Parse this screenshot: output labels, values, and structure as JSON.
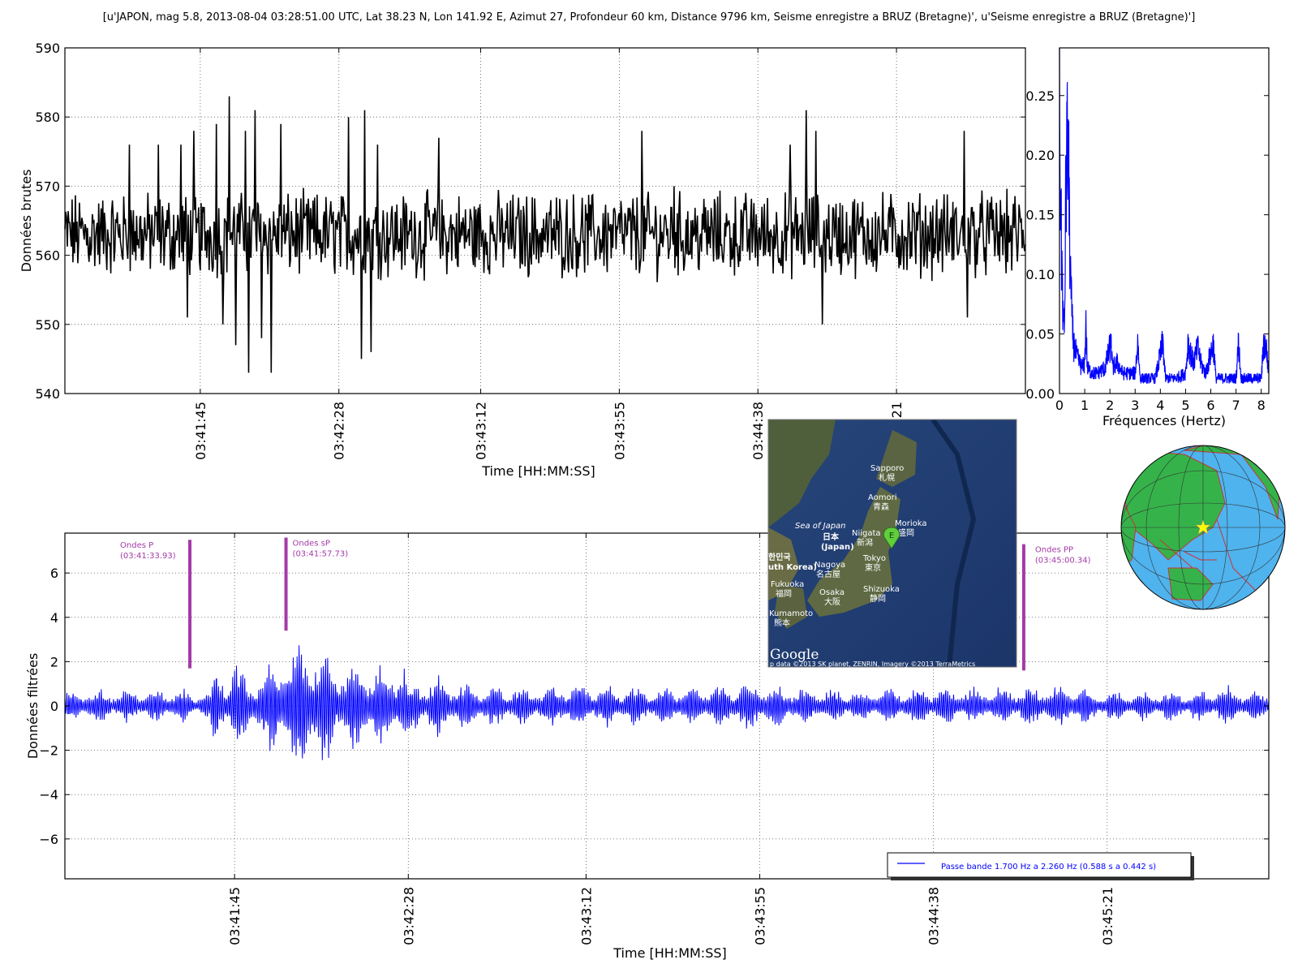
{
  "title": "[u'JAPON, mag 5.8, 2013-08-04 03:28:51.00 UTC, Lat 38.23 N, Lon 141.92 E, Azimut 27, Profondeur 60 km, Distance 9796 km, Seisme enregistre a BRUZ (Bretagne)', u'Seisme enregistre a BRUZ (Bretagne)']",
  "colors": {
    "raw": "#000000",
    "spectrum": "#0000ff",
    "filtered": "#0000ff",
    "annotation": "#a43aa8",
    "grid": "#555555"
  },
  "chart_data": [
    {
      "id": "raw",
      "type": "line",
      "xlabel": "Time [HH:MM:SS]",
      "ylabel": "Données brutes",
      "x_tick_labels": [
        "03:41:45",
        "03:42:28",
        "03:43:12",
        "03:43:55",
        "03:44:38",
        "03:45:21"
      ],
      "x_tick_seconds": [
        105,
        148,
        192,
        235,
        278,
        321
      ],
      "xlim_seconds": [
        63,
        361
      ],
      "ylim": [
        540,
        590
      ],
      "yticks": [
        540,
        550,
        560,
        570,
        580,
        590
      ],
      "grid": true,
      "baseline": 563,
      "noise_amplitude": 5,
      "series_color": "#000000",
      "peaks": [
        {
          "t": 83,
          "v": 576
        },
        {
          "t": 92,
          "v": 576
        },
        {
          "t": 99,
          "v": 576
        },
        {
          "t": 101,
          "v": 551
        },
        {
          "t": 103,
          "v": 578
        },
        {
          "t": 110,
          "v": 579
        },
        {
          "t": 112,
          "v": 550
        },
        {
          "t": 114,
          "v": 583
        },
        {
          "t": 116,
          "v": 547
        },
        {
          "t": 119,
          "v": 578
        },
        {
          "t": 120,
          "v": 543
        },
        {
          "t": 122,
          "v": 581
        },
        {
          "t": 124,
          "v": 548
        },
        {
          "t": 127,
          "v": 543
        },
        {
          "t": 130,
          "v": 579
        },
        {
          "t": 151,
          "v": 580
        },
        {
          "t": 155,
          "v": 545
        },
        {
          "t": 156,
          "v": 581
        },
        {
          "t": 158,
          "v": 546
        },
        {
          "t": 160,
          "v": 576
        },
        {
          "t": 179,
          "v": 577
        },
        {
          "t": 242,
          "v": 578
        },
        {
          "t": 252,
          "v": 570
        },
        {
          "t": 288,
          "v": 576
        },
        {
          "t": 293,
          "v": 581
        },
        {
          "t": 298,
          "v": 550
        },
        {
          "t": 296,
          "v": 578
        },
        {
          "t": 342,
          "v": 578
        },
        {
          "t": 343,
          "v": 551
        }
      ]
    },
    {
      "id": "spectrum",
      "type": "line",
      "xlabel": "Fréquences (Hertz)",
      "ylabel": "",
      "xlim": [
        0,
        8.3
      ],
      "xticks": [
        0,
        1,
        2,
        3,
        4,
        5,
        6,
        7,
        8
      ],
      "ylim": [
        0,
        0.29
      ],
      "yticks": [
        0.0,
        0.05,
        0.1,
        0.15,
        0.2,
        0.25
      ],
      "ytick_labels": [
        "0.00",
        "0.05",
        "0.10",
        "0.15",
        "0.20",
        "0.25"
      ],
      "grid": false,
      "series_color": "#0000ff",
      "points": [
        [
          0.0,
          0.29
        ],
        [
          0.05,
          0.17
        ],
        [
          0.1,
          0.12
        ],
        [
          0.15,
          0.07
        ],
        [
          0.2,
          0.06
        ],
        [
          0.25,
          0.2
        ],
        [
          0.3,
          0.24
        ],
        [
          0.35,
          0.23
        ],
        [
          0.4,
          0.16
        ],
        [
          0.45,
          0.1
        ],
        [
          0.5,
          0.07
        ],
        [
          0.55,
          0.05
        ],
        [
          0.6,
          0.045
        ],
        [
          0.7,
          0.035
        ],
        [
          0.8,
          0.03
        ],
        [
          0.9,
          0.025
        ],
        [
          1.0,
          0.03
        ],
        [
          1.05,
          0.07
        ],
        [
          1.1,
          0.025
        ],
        [
          1.3,
          0.02
        ],
        [
          1.5,
          0.02
        ],
        [
          1.8,
          0.025
        ],
        [
          2.05,
          0.05
        ],
        [
          2.1,
          0.025
        ],
        [
          2.3,
          0.03
        ],
        [
          2.5,
          0.02
        ],
        [
          3.0,
          0.02
        ],
        [
          3.1,
          0.05
        ],
        [
          3.2,
          0.015
        ],
        [
          3.8,
          0.015
        ],
        [
          4.1,
          0.05
        ],
        [
          4.2,
          0.015
        ],
        [
          4.6,
          0.015
        ],
        [
          5.0,
          0.02
        ],
        [
          5.1,
          0.05
        ],
        [
          5.3,
          0.03
        ],
        [
          5.5,
          0.045
        ],
        [
          5.6,
          0.03
        ],
        [
          5.8,
          0.02
        ],
        [
          6.1,
          0.05
        ],
        [
          6.2,
          0.015
        ],
        [
          7.0,
          0.015
        ],
        [
          7.1,
          0.05
        ],
        [
          7.2,
          0.015
        ],
        [
          8.0,
          0.015
        ],
        [
          8.1,
          0.05
        ],
        [
          8.2,
          0.045
        ],
        [
          8.3,
          0.02
        ]
      ]
    },
    {
      "id": "filtered",
      "type": "line",
      "xlabel": "Time [HH:MM:SS]",
      "ylabel": "Données filtrées",
      "x_tick_labels": [
        "03:41:45",
        "03:42:28",
        "03:43:12",
        "03:43:55",
        "03:44:38",
        "03:45:21"
      ],
      "x_tick_seconds": [
        105,
        148,
        192,
        235,
        278,
        321
      ],
      "xlim_seconds": [
        63,
        361
      ],
      "ylim": [
        -7.8,
        7.8
      ],
      "yticks": [
        -6,
        -4,
        -2,
        0,
        2,
        4,
        6
      ],
      "ytick_labels": [
        "−6",
        "−4",
        "−2",
        "0",
        "2",
        "4",
        "6"
      ],
      "grid": true,
      "series_color": "#0000ff",
      "legend": "Passe bande 1.700 Hz a 2.260 Hz (0.588 s a 0.442 s)",
      "legend_location": "lower-right",
      "envelope": [
        [
          63,
          0.8
        ],
        [
          93,
          0.8
        ],
        [
          94,
          0.6
        ],
        [
          99,
          0.8
        ],
        [
          100,
          2.0
        ],
        [
          104,
          1.8
        ],
        [
          105,
          2.4
        ],
        [
          108,
          1.4
        ],
        [
          113,
          1.8
        ],
        [
          115,
          2.5
        ],
        [
          118,
          3.0
        ],
        [
          120,
          3.4
        ],
        [
          122,
          3.6
        ],
        [
          123,
          3.8
        ],
        [
          125,
          3.2
        ],
        [
          128,
          2.8
        ],
        [
          132,
          2.0
        ],
        [
          136,
          2.4
        ],
        [
          140,
          2.0
        ],
        [
          143,
          1.8
        ],
        [
          147,
          2.5
        ],
        [
          148,
          1.3
        ],
        [
          156,
          1.5
        ],
        [
          160,
          1.2
        ],
        [
          170,
          1.0
        ],
        [
          180,
          1.0
        ],
        [
          190,
          1.2
        ],
        [
          200,
          1.0
        ],
        [
          210,
          1.0
        ],
        [
          220,
          1.0
        ],
        [
          235,
          1.2
        ],
        [
          240,
          1.0
        ],
        [
          250,
          0.9
        ],
        [
          260,
          0.8
        ],
        [
          270,
          0.9
        ],
        [
          280,
          1.0
        ],
        [
          290,
          0.9
        ],
        [
          300,
          1.0
        ],
        [
          310,
          1.1
        ],
        [
          318,
          0.8
        ],
        [
          330,
          0.7
        ],
        [
          345,
          0.8
        ],
        [
          350,
          1.1
        ],
        [
          355,
          0.8
        ],
        [
          361,
          0.8
        ]
      ],
      "annotations": [
        {
          "label": "Ondes P",
          "time": "(03:41:33.93)",
          "t": 93.93,
          "y_top": 7.5,
          "y_bottom": 1.7
        },
        {
          "label": "Ondes sP",
          "time": "(03:41:57.73)",
          "t": 117.73,
          "y_top": 7.6,
          "y_bottom": 3.4
        },
        {
          "label": "Ondes PP",
          "time": "(03:45:00.34)",
          "t": 300.34,
          "y_top": 7.3,
          "y_bottom": 1.6
        }
      ]
    }
  ],
  "map": {
    "labels": {
      "sapporo": "Sapporo",
      "sapporo_jp": "札幌",
      "aomori": "Aomori",
      "aomori_jp": "青森",
      "morioka": "Morioka",
      "morioka_jp": "盛岡",
      "sea": "Sea of Japan",
      "japan_jp": "日本",
      "japan": "(Japan)",
      "niigata": "Niigata",
      "niigata_jp": "新潟",
      "korea_jp": "한민국",
      "korea": "uth Korea)",
      "nagoya": "Nagoya",
      "nagoya_jp": "名古屋",
      "tokyo": "Tokyo",
      "tokyo_jp": "東京",
      "fukuoka": "Fukuoka",
      "fukuoka_jp": "福岡",
      "osaka": "Osaka",
      "osaka_jp": "大阪",
      "shizuoka": "Shizuoka",
      "shizuoka_jp": "静岡",
      "kumamoto": "Kumamoto",
      "kumamoto_jp": "熊本",
      "marker": "E",
      "google": "Google",
      "credits": "p data ©2013 SK planet, ZENRIN, Imagery ©2013 TerraMetrics"
    }
  },
  "globe": {
    "marker": "star",
    "marker_color": "#ffff00"
  }
}
